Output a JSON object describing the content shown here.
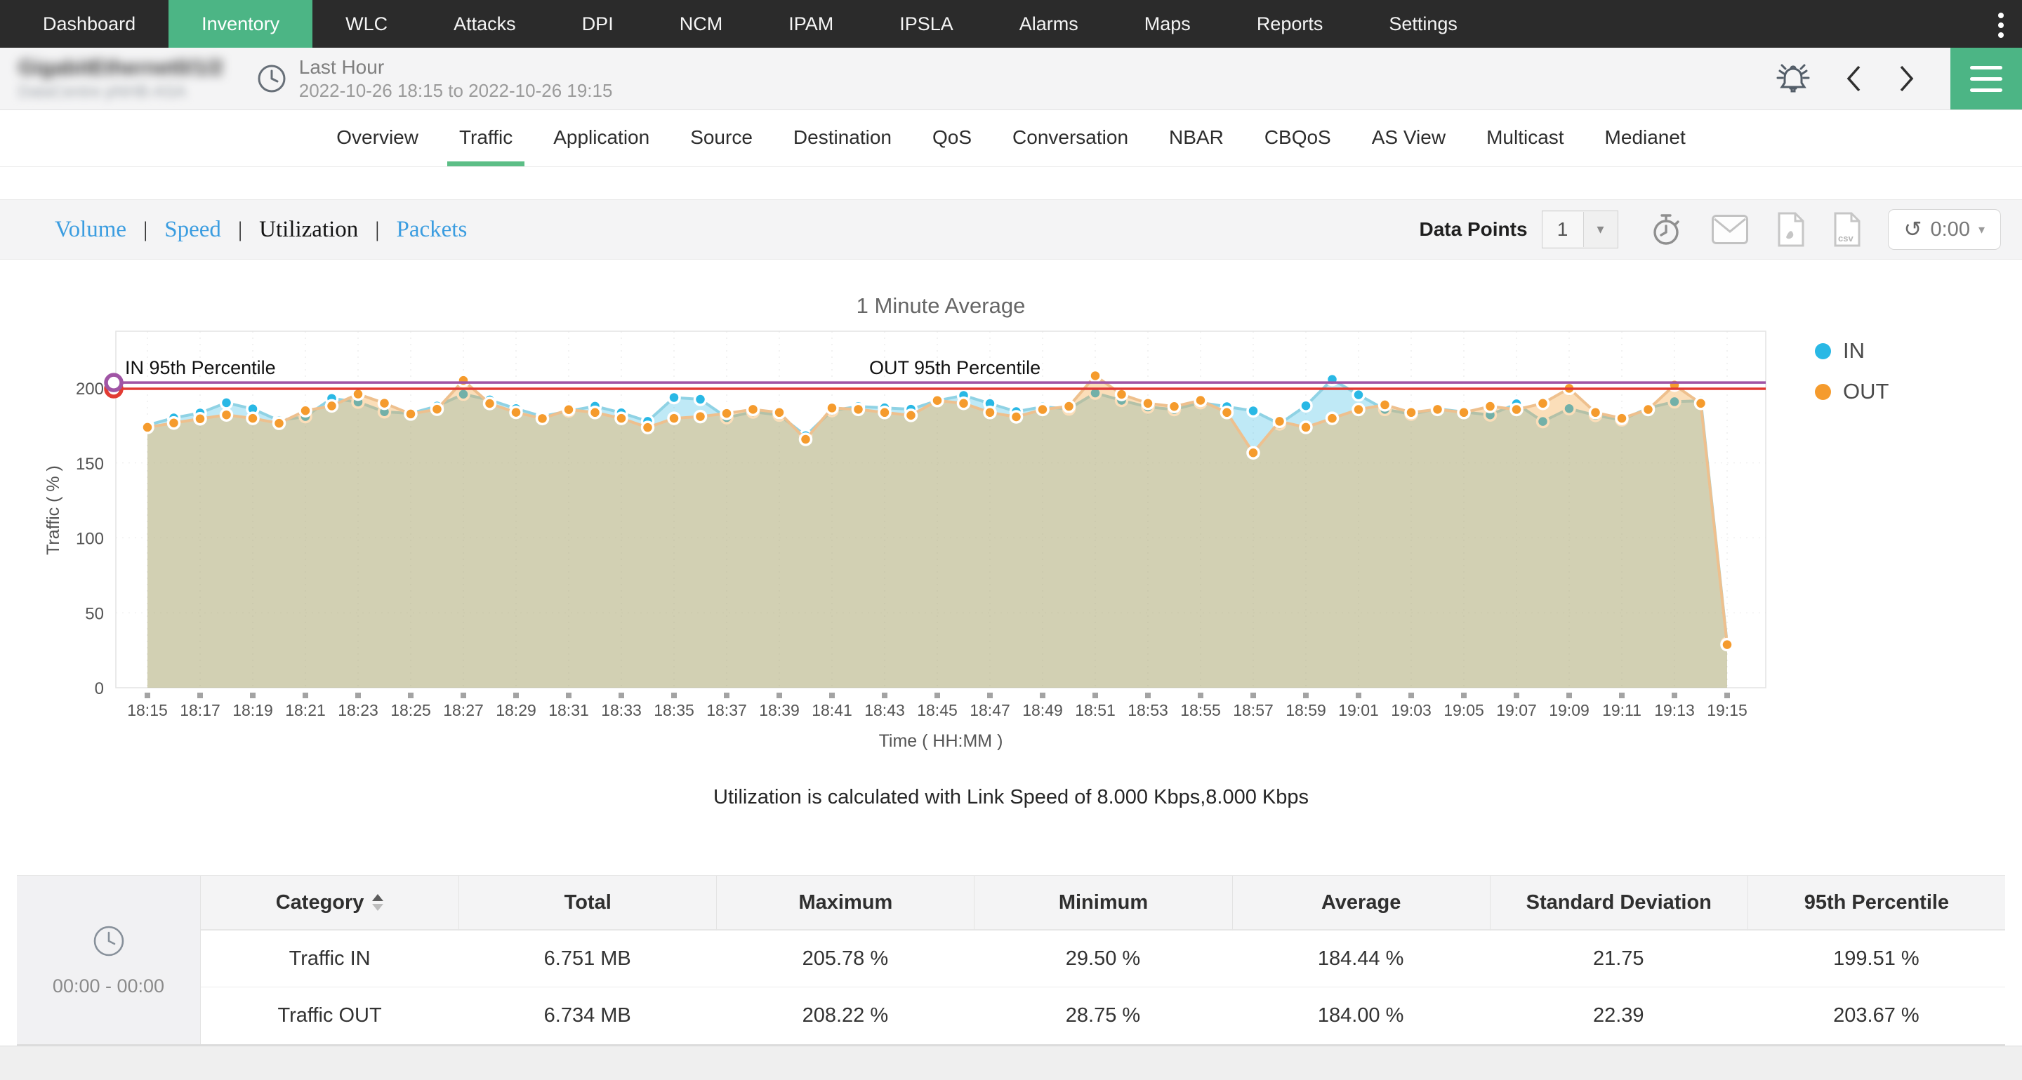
{
  "topnav": {
    "items": [
      {
        "label": "Dashboard",
        "active": false
      },
      {
        "label": "Inventory",
        "active": true
      },
      {
        "label": "WLC",
        "active": false
      },
      {
        "label": "Attacks",
        "active": false
      },
      {
        "label": "DPI",
        "active": false
      },
      {
        "label": "NCM",
        "active": false
      },
      {
        "label": "IPAM",
        "active": false
      },
      {
        "label": "IPSLA",
        "active": false
      },
      {
        "label": "Alarms",
        "active": false
      },
      {
        "label": "Maps",
        "active": false
      },
      {
        "label": "Reports",
        "active": false
      },
      {
        "label": "Settings",
        "active": false
      }
    ]
  },
  "header": {
    "device_name": "GigabitEthernet0/1/2",
    "device_group": "DataCentre pNHB-ASA",
    "period_label": "Last Hour",
    "period_range": "2022-10-26 18:15 to 2022-10-26 19:15"
  },
  "tabs": [
    "Overview",
    "Traffic",
    "Application",
    "Source",
    "Destination",
    "QoS",
    "Conversation",
    "NBAR",
    "CBQoS",
    "AS View",
    "Multicast",
    "Medianet"
  ],
  "active_tab": "Traffic",
  "subtabs": [
    {
      "label": "Volume",
      "active": false
    },
    {
      "label": "Speed",
      "active": false
    },
    {
      "label": "Utilization",
      "active": true
    },
    {
      "label": "Packets",
      "active": false
    }
  ],
  "toolbar": {
    "data_points_label": "Data Points",
    "data_points_value": "1",
    "refresh_value": "0:00"
  },
  "chart_data": {
    "type": "area",
    "title": "1 Minute Average",
    "xlabel": "Time ( HH:MM )",
    "ylabel": "Traffic ( % )",
    "ylim": [
      0,
      237
    ],
    "yticks": [
      0,
      50,
      100,
      150,
      200
    ],
    "x_tick_every": 2,
    "grid": true,
    "legend_position": "right",
    "x": [
      "18:15",
      "18:16",
      "18:17",
      "18:18",
      "18:19",
      "18:20",
      "18:21",
      "18:22",
      "18:23",
      "18:24",
      "18:25",
      "18:26",
      "18:27",
      "18:28",
      "18:29",
      "18:30",
      "18:31",
      "18:32",
      "18:33",
      "18:34",
      "18:35",
      "18:36",
      "18:37",
      "18:38",
      "18:39",
      "18:40",
      "18:41",
      "18:42",
      "18:43",
      "18:44",
      "18:45",
      "18:46",
      "18:47",
      "18:48",
      "18:49",
      "18:50",
      "18:51",
      "18:52",
      "18:53",
      "18:54",
      "18:55",
      "18:56",
      "18:57",
      "18:58",
      "18:59",
      "19:00",
      "19:01",
      "19:02",
      "19:03",
      "19:04",
      "19:05",
      "19:06",
      "19:07",
      "19:08",
      "19:09",
      "19:10",
      "19:11",
      "19:12",
      "19:13",
      "19:14",
      "19:15"
    ],
    "series": [
      {
        "name": "IN",
        "color": "#29b8e5",
        "line_color": "#8fd2e4",
        "fill_color": "#56c6e8",
        "fill_opacity": 0.38,
        "values": [
          175.2,
          180.1,
          183.4,
          190.2,
          186.1,
          178.3,
          181.0,
          193.1,
          190.7,
          184.2,
          183.1,
          188.0,
          195.9,
          192.1,
          186.3,
          181.1,
          184.7,
          187.9,
          183.5,
          177.8,
          193.7,
          192.5,
          180.3,
          184.1,
          182.0,
          168.2,
          185.0,
          187.7,
          186.8,
          185.9,
          191.6,
          195.1,
          189.7,
          184.3,
          187.5,
          186.1,
          196.7,
          191.8,
          187.4,
          185.7,
          190.3,
          187.6,
          184.8,
          176.1,
          188.2,
          205.78,
          195.5,
          185.8,
          182.6,
          186.2,
          184.0,
          182.1,
          189.5,
          177.7,
          186.3,
          181.8,
          178.8,
          186.7,
          190.9,
          191.5,
          29.5
        ]
      },
      {
        "name": "OUT",
        "color": "#f59b2d",
        "line_color": "#eec08e",
        "fill_color": "#f5a43c",
        "fill_opacity": 0.36,
        "values": [
          173.8,
          176.7,
          179.5,
          182.1,
          179.8,
          176.5,
          184.9,
          188.1,
          196.0,
          189.9,
          182.7,
          185.9,
          205.1,
          189.7,
          183.8,
          179.7,
          185.6,
          183.7,
          179.8,
          173.7,
          179.8,
          181.0,
          183.1,
          185.8,
          183.7,
          165.8,
          186.7,
          185.8,
          183.7,
          181.8,
          191.7,
          189.8,
          183.7,
          180.8,
          185.7,
          187.8,
          208.22,
          195.8,
          189.8,
          187.7,
          191.8,
          183.7,
          156.8,
          177.8,
          173.8,
          179.8,
          185.7,
          188.8,
          183.7,
          185.8,
          183.7,
          187.8,
          185.7,
          189.8,
          199.8,
          183.7,
          179.8,
          185.7,
          202.0,
          189.8,
          28.75
        ]
      }
    ],
    "annotations": [
      {
        "label": "IN 95th Percentile",
        "value": 199.51,
        "color": "#e23b33",
        "label_x": 178
      },
      {
        "label": "OUT 95th Percentile",
        "value": 203.67,
        "color": "#a055a5",
        "label_x": 1238
      }
    ]
  },
  "note": {
    "text": "Utilization is calculated with Link Speed of 8.000 Kbps,8.000 Kbps"
  },
  "table": {
    "time_range": "00:00 - 00:00",
    "columns": [
      "Category",
      "Total",
      "Maximum",
      "Minimum",
      "Average",
      "Standard Deviation",
      "95th Percentile"
    ],
    "sorted_column": "Category",
    "rows": [
      [
        "Traffic IN",
        "6.751 MB",
        "205.78 %",
        "29.50 %",
        "184.44 %",
        "21.75",
        "199.51 %"
      ],
      [
        "Traffic OUT",
        "6.734 MB",
        "208.22 %",
        "28.75 %",
        "184.00 %",
        "22.39",
        "203.67 %"
      ]
    ]
  },
  "colors": {
    "accent_green": "#4cb585",
    "link_blue": "#3b9de0",
    "in_series": "#29b8e5",
    "out_series": "#f59b2d",
    "in_95th_line": "#e23b33",
    "out_95th_line": "#a055a5"
  }
}
